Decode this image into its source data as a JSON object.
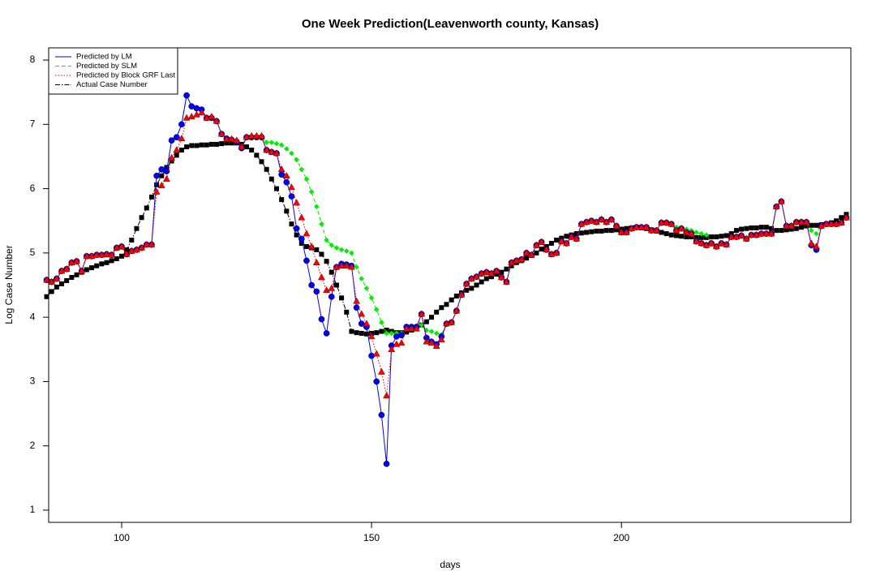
{
  "chart_data": {
    "type": "line",
    "title": "One Week Prediction(Leavenworth county, Kansas)",
    "xlabel": "days",
    "ylabel": "Log Case Number",
    "xlim": [
      85.4,
      245.9
    ],
    "xticks": [
      100,
      150,
      200
    ],
    "ylim": [
      0.81,
      8.19
    ],
    "yticks": [
      1,
      2,
      3,
      4,
      5,
      6,
      7,
      8
    ],
    "legend": "top-left",
    "x": [
      85,
      86,
      87,
      88,
      89,
      90,
      91,
      92,
      93,
      94,
      95,
      96,
      97,
      98,
      99,
      100,
      101,
      102,
      103,
      104,
      105,
      106,
      107,
      108,
      109,
      110,
      111,
      112,
      113,
      114,
      115,
      116,
      117,
      118,
      119,
      120,
      121,
      122,
      123,
      124,
      125,
      126,
      127,
      128,
      129,
      130,
      131,
      132,
      133,
      134,
      135,
      136,
      137,
      138,
      139,
      140,
      141,
      142,
      143,
      144,
      145,
      146,
      147,
      148,
      149,
      150,
      151,
      152,
      153,
      154,
      155,
      156,
      157,
      158,
      159,
      160,
      161,
      162,
      163,
      164,
      165,
      166,
      167,
      168,
      169,
      170,
      171,
      172,
      173,
      174,
      175,
      176,
      177,
      178,
      179,
      180,
      181,
      182,
      183,
      184,
      185,
      186,
      187,
      188,
      189,
      190,
      191,
      192,
      193,
      194,
      195,
      196,
      197,
      198,
      199,
      200,
      201,
      202,
      203,
      204,
      205,
      206,
      207,
      208,
      209,
      210,
      211,
      212,
      213,
      214,
      215,
      216,
      217,
      218,
      219,
      220,
      221,
      222,
      223,
      224,
      225,
      226,
      227,
      228,
      229,
      230,
      231,
      232,
      233,
      234,
      235,
      236,
      237,
      238,
      239,
      240,
      241,
      242,
      243,
      244,
      245
    ],
    "series": [
      {
        "name": "Predicted by LM",
        "color": "#0000ff",
        "linestyle": "solid",
        "marker": "circle",
        "values": [
          4.58,
          4.55,
          4.6,
          4.72,
          4.75,
          4.85,
          4.87,
          4.72,
          4.95,
          4.95,
          4.97,
          4.97,
          4.98,
          4.97,
          5.08,
          5.1,
          4.98,
          5.03,
          5.05,
          5.08,
          5.13,
          5.13,
          6.2,
          6.3,
          6.27,
          6.75,
          6.8,
          7.0,
          7.45,
          7.28,
          7.25,
          7.23,
          7.1,
          7.1,
          7.05,
          6.85,
          6.78,
          6.76,
          6.73,
          6.63,
          6.8,
          6.8,
          6.8,
          6.8,
          6.6,
          6.57,
          6.55,
          6.22,
          6.1,
          5.88,
          5.38,
          5.22,
          4.88,
          4.5,
          4.4,
          3.97,
          3.75,
          4.32,
          4.78,
          4.83,
          4.82,
          4.8,
          4.15,
          3.9,
          3.85,
          3.4,
          3.0,
          2.48,
          1.72,
          3.56,
          3.7,
          3.72,
          3.85,
          3.85,
          3.85,
          4.05,
          3.68,
          3.62,
          3.58,
          3.7,
          3.9,
          3.92,
          4.1,
          4.35,
          4.52,
          4.6,
          4.63,
          4.68,
          4.7,
          4.68,
          4.72,
          4.62,
          4.55,
          4.85,
          4.88,
          4.9,
          5.0,
          4.97,
          5.12,
          5.17,
          5.05,
          4.98,
          5.0,
          5.18,
          5.15,
          5.25,
          5.22,
          5.45,
          5.48,
          5.5,
          5.48,
          5.52,
          5.48,
          5.52,
          5.42,
          5.32,
          5.32,
          5.38,
          5.4,
          5.4,
          5.4,
          5.35,
          5.35,
          5.47,
          5.47,
          5.45,
          5.35,
          5.38,
          5.32,
          5.3,
          5.18,
          5.15,
          5.12,
          5.15,
          5.1,
          5.15,
          5.13,
          5.25,
          5.25,
          5.27,
          5.22,
          5.28,
          5.28,
          5.3,
          5.3,
          5.3,
          5.72,
          5.8,
          5.42,
          5.42,
          5.48,
          5.48,
          5.48,
          5.12,
          5.05,
          5.42,
          5.45,
          5.45,
          5.45,
          5.47,
          5.55
        ]
      },
      {
        "name": "Predicted by SLM",
        "color": "#00ee00",
        "linestyle": "dashed",
        "marker": "diamond",
        "values": [
          4.58,
          4.55,
          4.6,
          4.72,
          4.75,
          4.85,
          4.87,
          4.72,
          4.95,
          4.95,
          4.97,
          4.97,
          4.98,
          4.97,
          5.08,
          5.1,
          4.98,
          5.03,
          5.05,
          5.08,
          5.13,
          5.13,
          6.2,
          6.3,
          6.27,
          6.75,
          6.8,
          7.0,
          7.45,
          7.28,
          7.25,
          7.23,
          7.1,
          7.1,
          7.05,
          6.85,
          6.78,
          6.76,
          6.73,
          6.63,
          6.8,
          6.8,
          6.8,
          6.8,
          6.72,
          6.72,
          6.7,
          6.68,
          6.62,
          6.55,
          6.45,
          6.3,
          6.15,
          5.95,
          5.72,
          5.45,
          5.2,
          5.12,
          5.08,
          5.05,
          5.03,
          5.0,
          4.78,
          4.6,
          4.45,
          4.3,
          4.12,
          3.92,
          3.75,
          3.75,
          3.75,
          3.75,
          3.82,
          3.85,
          3.85,
          3.88,
          3.8,
          3.78,
          3.75,
          3.73,
          3.9,
          3.92,
          4.1,
          4.35,
          4.52,
          4.6,
          4.63,
          4.68,
          4.7,
          4.68,
          4.72,
          4.62,
          4.55,
          4.85,
          4.88,
          4.9,
          5.0,
          4.97,
          5.12,
          5.17,
          5.05,
          4.98,
          5.0,
          5.18,
          5.15,
          5.25,
          5.22,
          5.45,
          5.48,
          5.5,
          5.48,
          5.52,
          5.48,
          5.52,
          5.42,
          5.32,
          5.32,
          5.38,
          5.4,
          5.4,
          5.4,
          5.35,
          5.35,
          5.47,
          5.47,
          5.45,
          5.4,
          5.38,
          5.37,
          5.35,
          5.32,
          5.3,
          5.28,
          5.15,
          5.1,
          5.15,
          5.13,
          5.25,
          5.25,
          5.27,
          5.22,
          5.28,
          5.28,
          5.3,
          5.3,
          5.3,
          5.72,
          5.8,
          5.42,
          5.42,
          5.48,
          5.48,
          5.48,
          5.35,
          5.3,
          5.42,
          5.45,
          5.45,
          5.45,
          5.47,
          5.55
        ]
      },
      {
        "name": "Predicted by Block GRF Last",
        "color": "#ff0000",
        "linestyle": "dotted",
        "marker": "triangle",
        "values": [
          4.58,
          4.55,
          4.6,
          4.72,
          4.75,
          4.85,
          4.87,
          4.72,
          4.95,
          4.95,
          4.97,
          4.97,
          4.98,
          4.97,
          5.08,
          5.1,
          4.98,
          5.03,
          5.05,
          5.08,
          5.13,
          5.13,
          5.95,
          6.05,
          6.15,
          6.48,
          6.6,
          6.78,
          7.1,
          7.12,
          7.15,
          7.18,
          7.1,
          7.12,
          7.05,
          6.85,
          6.77,
          6.77,
          6.75,
          6.65,
          6.8,
          6.82,
          6.82,
          6.82,
          6.6,
          6.57,
          6.55,
          6.3,
          6.2,
          6.02,
          5.78,
          5.55,
          5.3,
          5.1,
          4.85,
          4.62,
          4.42,
          4.45,
          4.78,
          4.8,
          4.8,
          4.78,
          4.25,
          4.05,
          3.9,
          3.7,
          3.43,
          3.15,
          2.78,
          3.5,
          3.58,
          3.6,
          3.82,
          3.82,
          3.82,
          4.05,
          3.62,
          3.6,
          3.55,
          3.65,
          3.9,
          3.92,
          4.1,
          4.35,
          4.52,
          4.6,
          4.63,
          4.68,
          4.7,
          4.68,
          4.72,
          4.62,
          4.55,
          4.85,
          4.88,
          4.9,
          5.0,
          4.97,
          5.12,
          5.17,
          5.05,
          4.98,
          5.0,
          5.18,
          5.15,
          5.25,
          5.22,
          5.45,
          5.48,
          5.5,
          5.48,
          5.52,
          5.48,
          5.52,
          5.42,
          5.32,
          5.32,
          5.38,
          5.4,
          5.4,
          5.4,
          5.35,
          5.35,
          5.47,
          5.47,
          5.45,
          5.35,
          5.38,
          5.32,
          5.3,
          5.18,
          5.15,
          5.12,
          5.15,
          5.1,
          5.15,
          5.13,
          5.25,
          5.25,
          5.27,
          5.22,
          5.28,
          5.28,
          5.3,
          5.3,
          5.3,
          5.72,
          5.8,
          5.42,
          5.42,
          5.48,
          5.48,
          5.48,
          5.15,
          5.1,
          5.42,
          5.45,
          5.45,
          5.45,
          5.47,
          5.55
        ]
      },
      {
        "name": "Actual Case Number",
        "color": "#000000",
        "linestyle": "dashdot",
        "marker": "square",
        "values": [
          4.32,
          4.4,
          4.47,
          4.52,
          4.57,
          4.62,
          4.66,
          4.7,
          4.74,
          4.77,
          4.8,
          4.83,
          4.85,
          4.88,
          4.91,
          4.95,
          5.05,
          5.2,
          5.38,
          5.55,
          5.7,
          5.87,
          6.06,
          6.2,
          6.33,
          6.43,
          6.52,
          6.6,
          6.65,
          6.67,
          6.67,
          6.68,
          6.68,
          6.69,
          6.69,
          6.7,
          6.71,
          6.71,
          6.71,
          6.69,
          6.65,
          6.6,
          6.52,
          6.42,
          6.3,
          6.15,
          6.0,
          5.83,
          5.65,
          5.45,
          5.28,
          5.15,
          5.1,
          5.08,
          5.05,
          4.98,
          4.87,
          4.7,
          4.5,
          4.3,
          4.08,
          3.78,
          3.76,
          3.75,
          3.74,
          3.75,
          3.76,
          3.78,
          3.8,
          3.78,
          3.76,
          3.76,
          3.77,
          3.8,
          3.84,
          3.88,
          3.93,
          4.0,
          4.08,
          4.15,
          4.2,
          4.27,
          4.33,
          4.38,
          4.42,
          4.45,
          4.5,
          4.55,
          4.6,
          4.63,
          4.67,
          4.7,
          4.75,
          4.8,
          4.85,
          4.88,
          4.92,
          4.96,
          5.0,
          5.06,
          5.1,
          5.15,
          5.2,
          5.23,
          5.26,
          5.28,
          5.3,
          5.31,
          5.32,
          5.33,
          5.34,
          5.34,
          5.35,
          5.35,
          5.36,
          5.37,
          5.38,
          5.39,
          5.4,
          5.39,
          5.38,
          5.36,
          5.34,
          5.32,
          5.3,
          5.28,
          5.27,
          5.26,
          5.25,
          5.25,
          5.24,
          5.24,
          5.24,
          5.25,
          5.25,
          5.26,
          5.27,
          5.3,
          5.35,
          5.37,
          5.38,
          5.39,
          5.39,
          5.4,
          5.4,
          5.38,
          5.35,
          5.35,
          5.36,
          5.37,
          5.38,
          5.4,
          5.42,
          5.43,
          5.43,
          5.44,
          5.45,
          5.47,
          5.5,
          5.55,
          5.6
        ]
      }
    ]
  }
}
